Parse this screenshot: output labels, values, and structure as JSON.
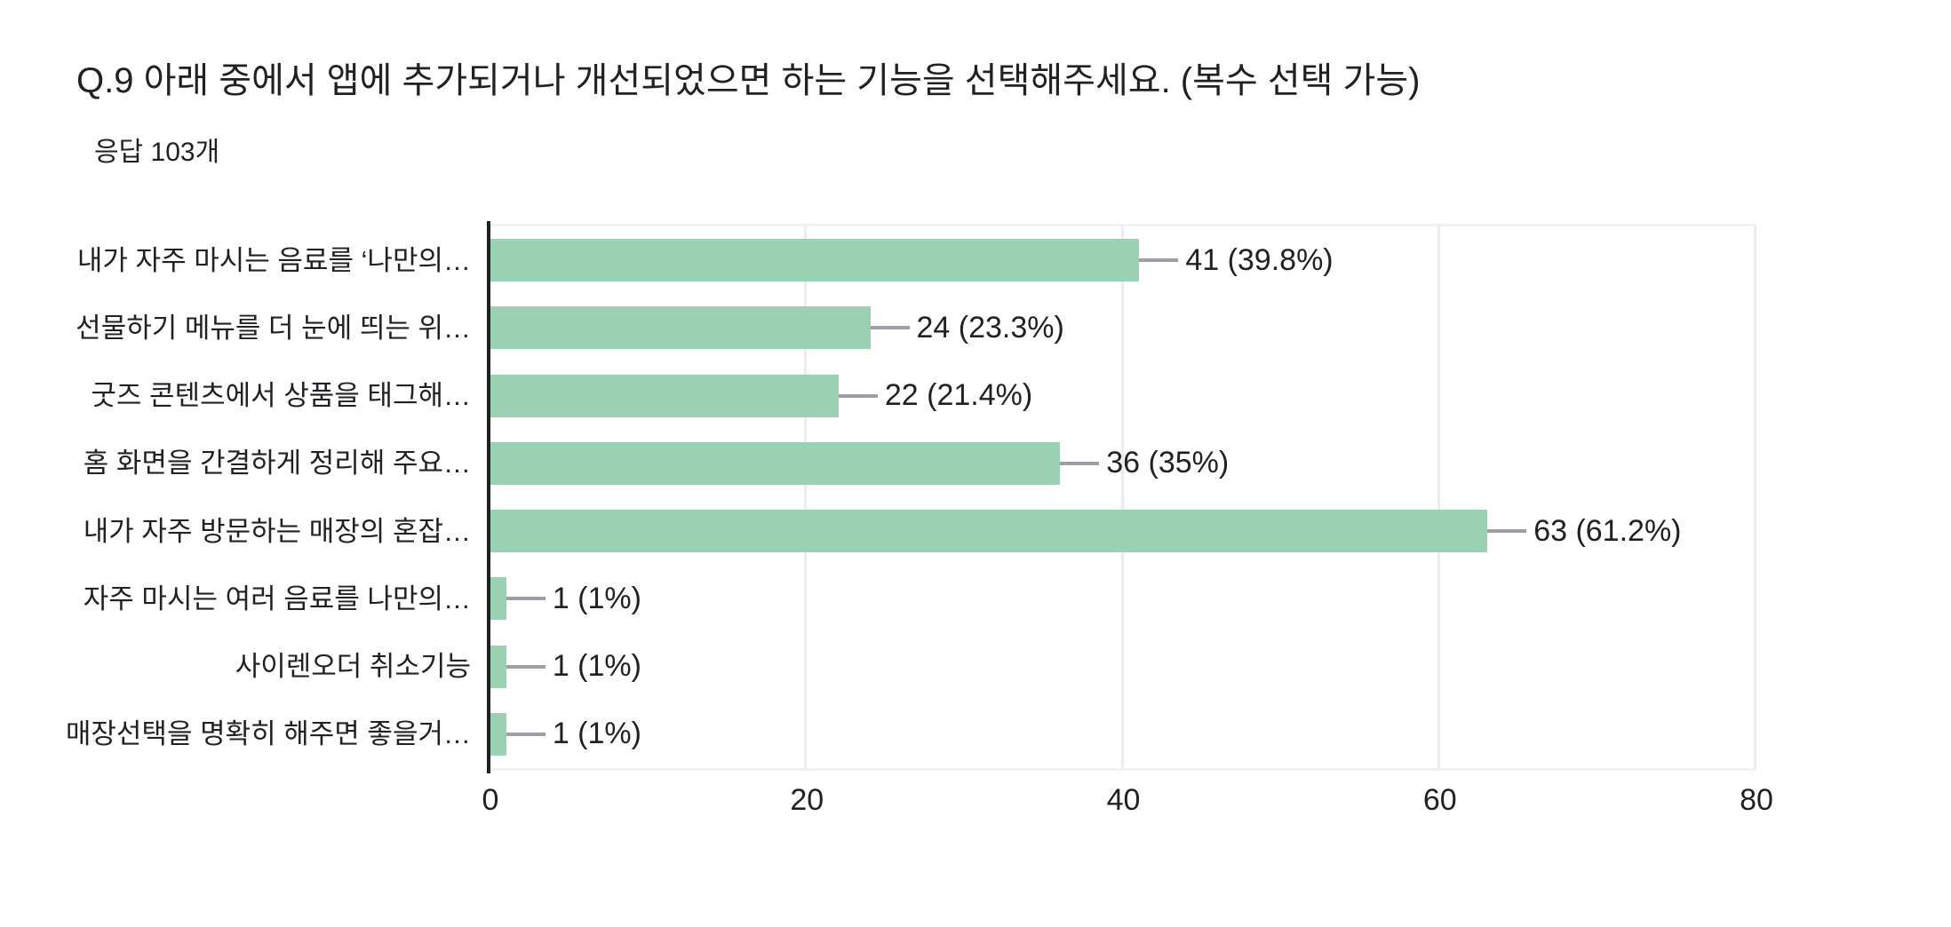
{
  "header": {
    "title": "Q.9 아래 중에서 앱에 추가되거나 개선되었으면 하는 기능을 선택해주세요. (복수 선택 가능)",
    "response_count": "응답 103개"
  },
  "chart_data": {
    "type": "bar",
    "orientation": "horizontal",
    "title": "Q.9 아래 중에서 앱에 추가되거나 개선되었으면 하는 기능을 선택해주세요. (복수 선택 가능)",
    "subtitle": "응답 103개",
    "categories": [
      "내가 자주 마시는 음료를 ‘나만의…",
      "선물하기 메뉴를 더 눈에 띄는 위…",
      "굿즈 콘텐츠에서 상품을 태그해…",
      "홈 화면을 간결하게 정리해 주요…",
      "내가 자주 방문하는 매장의 혼잡…",
      "자주 마시는 여러 음료를 나만의…",
      "사이렌오더 취소기능",
      "매장선택을 명확히 해주면 좋을거…"
    ],
    "values": [
      41,
      24,
      22,
      36,
      63,
      1,
      1,
      1
    ],
    "value_labels": [
      "41 (39.8%)",
      "24 (23.3%)",
      "22 (21.4%)",
      "36 (35%)",
      "63 (61.2%)",
      "1 (1%)",
      "1 (1%)",
      "1 (1%)"
    ],
    "x_ticks": [
      0,
      20,
      40,
      60,
      80
    ],
    "xlim": [
      0,
      80
    ],
    "grid": true,
    "legend": "none",
    "colors": {
      "bar": "#99d1b2",
      "axis_line": "#212121",
      "gridline": "#ececec",
      "text": "#202124",
      "connector": "#9aa0a6",
      "plot_border": "#f1f1f1"
    }
  }
}
